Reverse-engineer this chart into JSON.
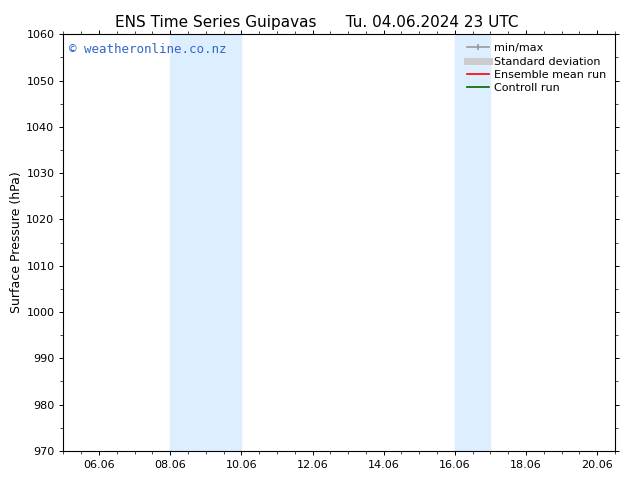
{
  "title_left": "ENS Time Series Guipavas",
  "title_right": "Tu. 04.06.2024 23 UTC",
  "ylabel": "Surface Pressure (hPa)",
  "ylim": [
    970,
    1060
  ],
  "yticks": [
    970,
    980,
    990,
    1000,
    1010,
    1020,
    1030,
    1040,
    1050,
    1060
  ],
  "x_start_date": 5,
  "x_end_date": 20,
  "xlim_start": 5.0,
  "xlim_end": 20.5,
  "xtick_labels": [
    "06.06",
    "08.06",
    "10.06",
    "12.06",
    "14.06",
    "16.06",
    "18.06",
    "20.06"
  ],
  "xtick_positions": [
    6,
    8,
    10,
    12,
    14,
    16,
    18,
    20
  ],
  "shaded_bands": [
    {
      "x_start": 8.0,
      "x_end": 10.0
    },
    {
      "x_start": 16.0,
      "x_end": 17.0
    }
  ],
  "shaded_color": "#ddeeff",
  "background_color": "#ffffff",
  "watermark_text": "© weatheronline.co.nz",
  "watermark_color": "#3366cc",
  "legend_items": [
    {
      "label": "min/max",
      "color": "#999999",
      "lw": 1.2,
      "style": "solid"
    },
    {
      "label": "Standard deviation",
      "color": "#cccccc",
      "lw": 5,
      "style": "solid"
    },
    {
      "label": "Ensemble mean run",
      "color": "#ff0000",
      "lw": 1.2,
      "style": "solid"
    },
    {
      "label": "Controll run",
      "color": "#006600",
      "lw": 1.2,
      "style": "solid"
    }
  ],
  "font_size_title": 11,
  "font_size_axis": 9,
  "font_size_ticks": 8,
  "font_size_legend": 8,
  "font_size_watermark": 9
}
